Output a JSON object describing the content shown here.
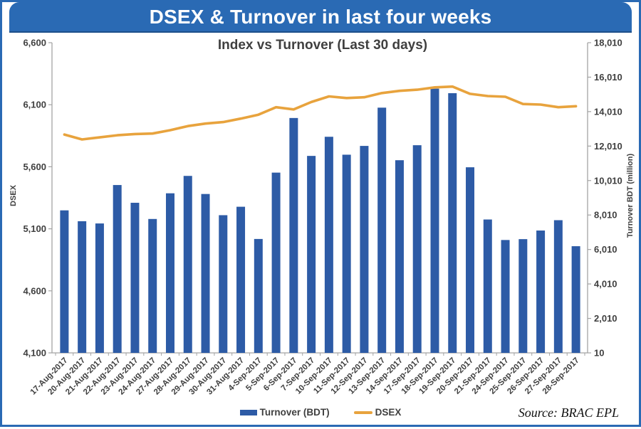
{
  "header": {
    "title": "DSEX & Turnover in last four weeks"
  },
  "footer": {
    "source": "Source: BRAC EPL"
  },
  "colors": {
    "banner": "#2a6ab4",
    "frame_border": "#2a6ab4",
    "bar": "#2d5ba6",
    "line": "#e8a33d",
    "axis": "#a3a3a3",
    "text": "#3f3f3f"
  },
  "chart_data": {
    "type": "bar",
    "subtype": "combo-bar-line",
    "title": "Index vs Turnover (Last 30 days)",
    "grid": false,
    "legend_position": "bottom",
    "categories": [
      "17-Aug-2017",
      "20-Aug-2017",
      "21-Aug-2017",
      "22-Aug-2017",
      "23-Aug-2017",
      "24-Aug-2017",
      "27-Aug-2017",
      "28-Aug-2017",
      "29-Aug-2017",
      "30-Aug-2017",
      "31-Aug-2017",
      "4-Sep-2017",
      "5-Sep-2017",
      "6-Sep-2017",
      "7-Sep-2017",
      "10-Sep-2017",
      "11-Sep-2017",
      "12-Sep-2017",
      "13-Sep-2017",
      "14-Sep-2017",
      "17-Sep-2017",
      "18-Sep-2017",
      "19-Sep-2017",
      "20-Sep-2017",
      "21-Sep-2017",
      "24-Sep-2017",
      "25-Sep-2017",
      "26-Sep-2017",
      "27-Sep-2017",
      "28-Sep-2017"
    ],
    "series": [
      {
        "name": "Turnover (BDT)",
        "type": "bar",
        "axis": "right",
        "color": "#2d5ba6",
        "values": [
          8280,
          7650,
          7520,
          9750,
          8720,
          7780,
          9270,
          10280,
          9230,
          8000,
          8490,
          6620,
          10470,
          13640,
          11440,
          12550,
          11510,
          12020,
          14240,
          11190,
          12060,
          15340,
          15080,
          10780,
          7750,
          6560,
          6610,
          7110,
          7710,
          6200
        ]
      },
      {
        "name": "DSEX",
        "type": "line",
        "axis": "left",
        "color": "#e8a33d",
        "values": [
          5860,
          5820,
          5837,
          5854,
          5864,
          5868,
          5895,
          5928,
          5948,
          5960,
          5988,
          6020,
          6080,
          6062,
          6122,
          6167,
          6154,
          6160,
          6194,
          6212,
          6221,
          6240,
          6246,
          6188,
          6170,
          6164,
          6106,
          6101,
          6080,
          6088
        ]
      }
    ],
    "left_axis": {
      "label": "DSEX",
      "min": 4100,
      "max": 6600,
      "step": 500,
      "ticks": [
        "6,600",
        "6,100",
        "5,600",
        "5,100",
        "4,600",
        "4,100"
      ]
    },
    "right_axis": {
      "label": "Turnover BDT (million)",
      "min": 10,
      "max": 18010,
      "step": 2000,
      "ticks": [
        "18,010",
        "16,010",
        "14,010",
        "12,010",
        "10,010",
        "8,010",
        "6,010",
        "4,010",
        "2,010",
        "10"
      ]
    }
  }
}
